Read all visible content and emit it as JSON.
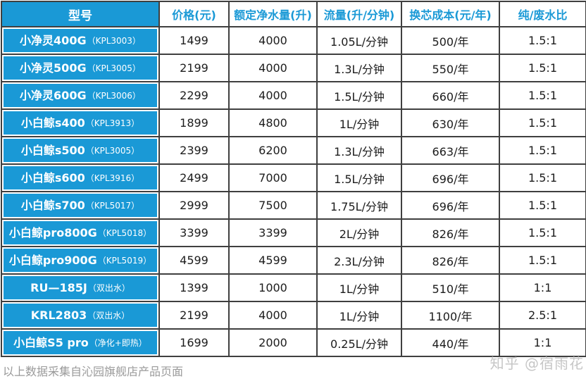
{
  "chart_data": {
    "type": "table",
    "columns": [
      "型号",
      "价格(元)",
      "额定净水量(升)",
      "流量(升/分钟)",
      "换芯成本(元/年)",
      "纯/废水比"
    ],
    "rows": [
      {
        "model": "小净灵400G",
        "code": "（KPL3003）",
        "price": "1499",
        "volume": "4000",
        "flow": "1.05L/分钟",
        "cost": "500/年",
        "ratio": "1.5:1"
      },
      {
        "model": "小净灵500G",
        "code": "（KPL3005）",
        "price": "2199",
        "volume": "4000",
        "flow": "1.3L/分钟",
        "cost": "550/年",
        "ratio": "1.5:1"
      },
      {
        "model": "小净灵600G",
        "code": "（KPL3006）",
        "price": "2299",
        "volume": "4000",
        "flow": "1.5L/分钟",
        "cost": "660/年",
        "ratio": "1.5:1"
      },
      {
        "model": "小白鲸s400",
        "code": "（KPL3913）",
        "price": "1899",
        "volume": "4800",
        "flow": "1L/分钟",
        "cost": "630/年",
        "ratio": "1.5:1"
      },
      {
        "model": "小白鲸s500",
        "code": "（KPL3005）",
        "price": "2399",
        "volume": "6200",
        "flow": "1.3L/分钟",
        "cost": "663/年",
        "ratio": "1.5:1"
      },
      {
        "model": "小白鲸s600",
        "code": "（KPL3916）",
        "price": "2499",
        "volume": "7000",
        "flow": "1.5L/分钟",
        "cost": "696/年",
        "ratio": "1.5:1"
      },
      {
        "model": "小白鲸s700",
        "code": "（KPL5017）",
        "price": "2999",
        "volume": "7500",
        "flow": "1.75L/分钟",
        "cost": "696/年",
        "ratio": "1.5:1"
      },
      {
        "model": "小白鲸pro800G",
        "code": "（KPL5018）",
        "price": "3399",
        "volume": "3399",
        "flow": "2L/分钟",
        "cost": "826/年",
        "ratio": "1.5:1"
      },
      {
        "model": "小白鲸pro900G",
        "code": "（KPL5019）",
        "price": "4599",
        "volume": "4599",
        "flow": "2.3L/分钟",
        "cost": "826/年",
        "ratio": "1.5:1"
      },
      {
        "model": "RU—185J",
        "code": "（双出水）",
        "price": "1399",
        "volume": "1000",
        "flow": "1L/分钟",
        "cost": "510/年",
        "ratio": "1:1"
      },
      {
        "model": "KRL2803",
        "code": "（双出水）",
        "price": "2199",
        "volume": "4000",
        "flow": "1L/分钟",
        "cost": "1100/年",
        "ratio": "2.5:1"
      },
      {
        "model": "小白鲸S5 pro",
        "code": "（净化+即热）",
        "price": "1699",
        "volume": "2000",
        "flow": "0.25L/分钟",
        "cost": "440/年",
        "ratio": "1:1"
      }
    ],
    "layout_hints": {
      "highlight_red_columns": [
        "额定净水量(升)",
        "流量(升/分钟)"
      ],
      "grid": true
    }
  },
  "footer": {
    "source_note": "以上数据采集自沁园旗舰店产品页面",
    "watermark": "知乎 @宿雨花"
  },
  "colors": {
    "blue": "#1a99d6",
    "red": "#e03131",
    "grid": "#3f3f3f",
    "footnote_gray": "#9a9a9a",
    "watermark_gray": "#c6c6c6"
  }
}
